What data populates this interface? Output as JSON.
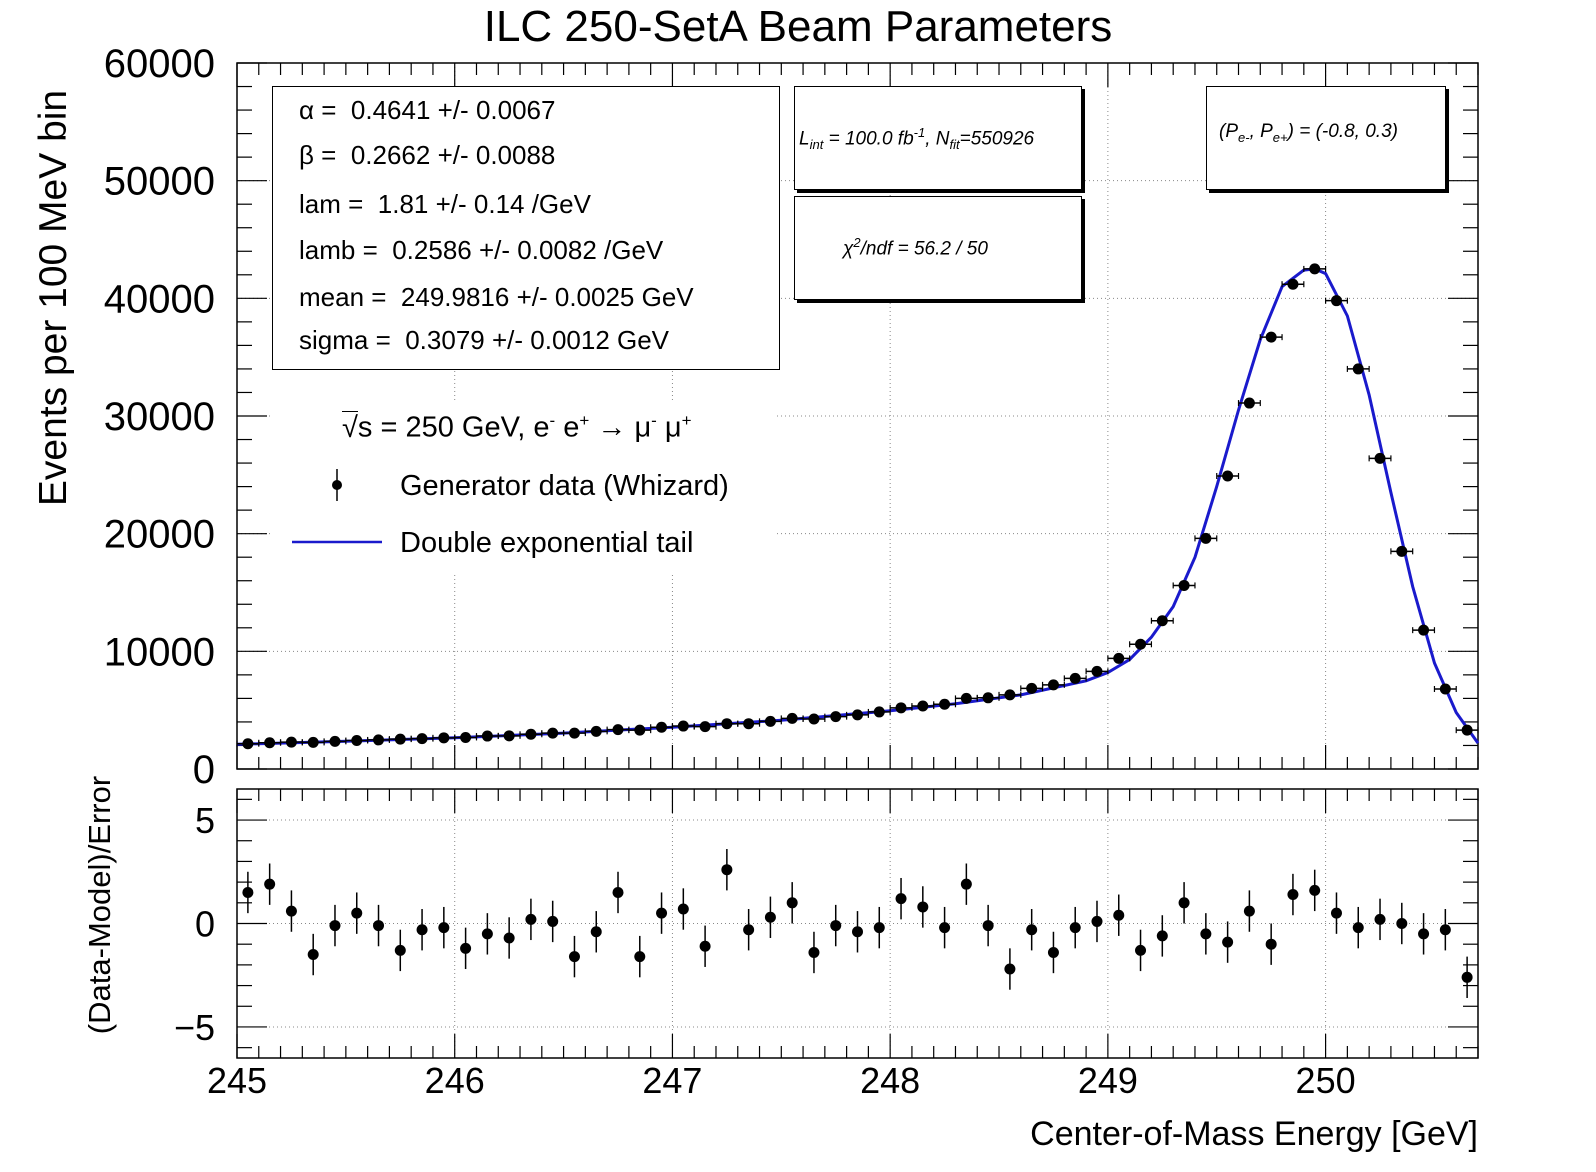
{
  "title": "ILC 250-SetA Beam Parameters",
  "colors": {
    "fit": "#1a1acc",
    "data": "#000000",
    "grid": "#999999"
  },
  "params": [
    {
      "name": "α =",
      "value": "0.4641 +/- 0.0067"
    },
    {
      "name": "β =",
      "value": "0.2662 +/- 0.0088"
    },
    {
      "name": "lam =",
      "value": "1.81 +/- 0.14 /GeV"
    },
    {
      "name": "lamb =",
      "value": "0.2586 +/- 0.0082 /GeV"
    },
    {
      "name": "mean =",
      "value": "249.9816 +/- 0.0025 GeV"
    },
    {
      "name": "sigma =",
      "value": "0.3079 +/- 0.0012 GeV"
    }
  ],
  "lumi_box": {
    "L": "L",
    "L_sub": "int",
    "L_val": " = 100.0 fb",
    "L_sup": "-1",
    "N": ", N",
    "N_sub": "fit",
    "N_val": "=550926"
  },
  "chi_box": {
    "chi": "χ",
    "chi_sup": "2",
    "text": "/ndf =   56.2 /  50"
  },
  "pol_box": {
    "open": "(P",
    "e1": "e-",
    "mid": ", P",
    "e2": "e+",
    "close": ") = (-0.8, 0.3)"
  },
  "legend": {
    "process_prefix": "s = 250 GeV, e",
    "process_sup1": "-",
    "process_mid": " e",
    "process_sup2": "+",
    "process_arrow": " → μ",
    "process_sup3": "-",
    "process_mu": " μ",
    "process_sup4": "+",
    "data_label": "Generator data (Whizard)",
    "fit_label": "Double exponential tail"
  },
  "chart_data": [
    {
      "type": "scatter",
      "title": "ILC 250-SetA Beam Parameters",
      "xlabel": "Center-of-Mass Energy [GeV]",
      "ylabel": "Events per 100 MeV bin",
      "xlim": [
        245.0,
        250.7
      ],
      "ylim": [
        0,
        60000
      ],
      "xticks": [
        245,
        246,
        247,
        248,
        249,
        250
      ],
      "yticks": [
        0,
        10000,
        20000,
        30000,
        40000,
        50000,
        60000
      ],
      "grid": true,
      "bin_width": 0.1,
      "x": [
        245.05,
        245.15,
        245.25,
        245.35,
        245.45,
        245.55,
        245.65,
        245.75,
        245.85,
        245.95,
        246.05,
        246.15,
        246.25,
        246.35,
        246.45,
        246.55,
        246.65,
        246.75,
        246.85,
        246.95,
        247.05,
        247.15,
        247.25,
        247.35,
        247.45,
        247.55,
        247.65,
        247.75,
        247.85,
        247.95,
        248.05,
        248.15,
        248.25,
        248.35,
        248.45,
        248.55,
        248.65,
        248.75,
        248.85,
        248.95,
        249.05,
        249.15,
        249.25,
        249.35,
        249.45,
        249.55,
        249.65,
        249.75,
        249.85,
        249.95,
        250.05,
        250.15,
        250.25,
        250.35,
        250.45,
        250.55,
        250.65
      ],
      "series": [
        {
          "name": "Generator data (Whizard)",
          "values": [
            2150,
            2230,
            2280,
            2260,
            2350,
            2420,
            2470,
            2540,
            2580,
            2650,
            2680,
            2800,
            2820,
            2950,
            3050,
            3050,
            3200,
            3350,
            3300,
            3550,
            3650,
            3600,
            3850,
            3850,
            4050,
            4300,
            4250,
            4450,
            4600,
            4850,
            5200,
            5350,
            5500,
            6000,
            6050,
            6300,
            6850,
            7150,
            7700,
            8300,
            9400,
            10600,
            12600,
            15600,
            19600,
            24900,
            31100,
            36700,
            41200,
            42500,
            39800,
            34000,
            26400,
            18500,
            11800,
            6800,
            3300
          ]
        },
        {
          "name": "Double exponential tail",
          "x": [
            245.0,
            245.5,
            246.0,
            246.5,
            247.0,
            247.5,
            248.0,
            248.3,
            248.6,
            248.9,
            249.0,
            249.1,
            249.2,
            249.3,
            249.4,
            249.5,
            249.6,
            249.7,
            249.8,
            249.9,
            249.95,
            250.0,
            250.1,
            250.2,
            250.3,
            250.4,
            250.5,
            250.6,
            250.7
          ],
          "values": [
            2100,
            2350,
            2650,
            3050,
            3550,
            4150,
            4950,
            5550,
            6300,
            7500,
            8200,
            9300,
            11200,
            13800,
            18000,
            24000,
            30500,
            36500,
            41000,
            42400,
            42500,
            42100,
            38500,
            31800,
            23500,
            15500,
            9000,
            4800,
            2200
          ]
        }
      ]
    },
    {
      "type": "scatter",
      "xlabel": "Center-of-Mass Energy [GeV]",
      "ylabel": "(Data-Model)/Error",
      "xlim": [
        245.0,
        250.7
      ],
      "ylim": [
        -6.5,
        6.5
      ],
      "yticks": [
        -5,
        0,
        5
      ],
      "grid": true,
      "series": [
        {
          "name": "pulls",
          "values": [
            1.5,
            1.9,
            0.6,
            -1.5,
            -0.1,
            0.5,
            -0.1,
            -1.3,
            -0.3,
            -0.2,
            -1.2,
            -0.5,
            -0.7,
            0.2,
            0.1,
            -1.6,
            -0.4,
            1.5,
            -1.6,
            0.5,
            0.7,
            -1.1,
            2.6,
            -0.3,
            0.3,
            1.0,
            -1.4,
            -0.1,
            -0.4,
            -0.2,
            1.2,
            0.8,
            -0.2,
            1.9,
            -0.1,
            -2.2,
            -0.3,
            -1.4,
            -0.2,
            0.1,
            0.4,
            -1.3,
            -0.6,
            1.0,
            -0.5,
            -0.9,
            0.6,
            -1.0,
            1.4,
            1.6,
            0.5,
            -0.2,
            0.2,
            0.0,
            -0.5,
            -0.3,
            -2.6
          ]
        }
      ]
    }
  ]
}
